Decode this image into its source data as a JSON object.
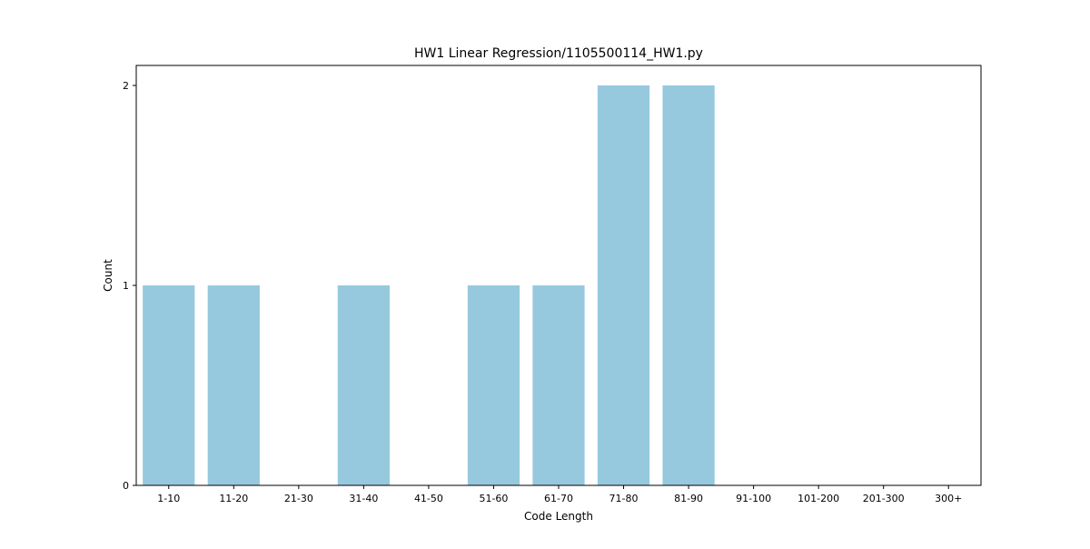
{
  "chart_data": {
    "type": "bar",
    "title": "HW1 Linear Regression/1105500114_HW1.py",
    "xlabel": "Code Length",
    "ylabel": "Count",
    "categories": [
      "1-10",
      "11-20",
      "21-30",
      "31-40",
      "41-50",
      "51-60",
      "61-70",
      "71-80",
      "81-90",
      "91-100",
      "101-200",
      "201-300",
      "300+"
    ],
    "values": [
      1,
      1,
      0,
      1,
      0,
      1,
      1,
      2,
      2,
      0,
      0,
      0,
      0
    ],
    "yticks": [
      "0",
      "1",
      "2"
    ],
    "ylim": [
      0,
      2.1
    ],
    "grid": false,
    "bar_color": "#96c9de"
  }
}
